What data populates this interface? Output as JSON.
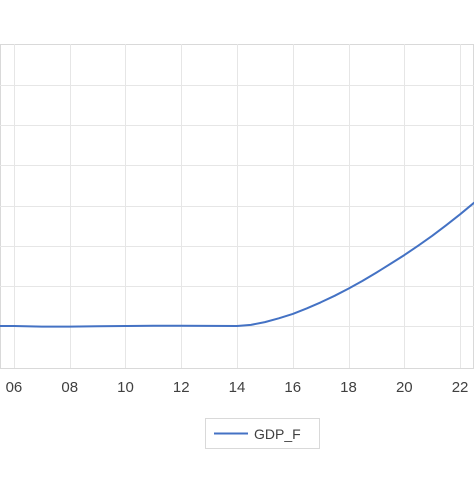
{
  "chart_data": {
    "type": "line",
    "title": "",
    "xlabel": "",
    "ylabel": "",
    "x_tick_labels": [
      "06",
      "08",
      "10",
      "12",
      "14",
      "16",
      "18",
      "20",
      "22"
    ],
    "x_ticks": [
      2006,
      2008,
      2010,
      2012,
      2014,
      2016,
      2018,
      2020,
      2022
    ],
    "xlim": [
      2005.5,
      2022.5
    ],
    "grid": true,
    "legend_position": "bottom-center",
    "series": [
      {
        "name": "GDP_F",
        "color": "#4472c4",
        "x": [
          2005.5,
          2006,
          2007,
          2008,
          2009,
          2010,
          2011,
          2012,
          2013,
          2014,
          2014.5,
          2015,
          2015.5,
          2016,
          2016.5,
          2017,
          2017.5,
          2018,
          2018.5,
          2019,
          2019.5,
          2020,
          2020.5,
          2021,
          2021.5,
          2022,
          2022.5
        ],
        "y": [
          0.0,
          0.0,
          -0.05,
          -0.05,
          -0.03,
          0.0,
          0.02,
          0.02,
          0.01,
          0.0,
          0.1,
          0.35,
          0.7,
          1.1,
          1.6,
          2.15,
          2.75,
          3.4,
          4.1,
          4.85,
          5.65,
          6.45,
          7.3,
          8.2,
          9.15,
          10.15,
          11.2
        ]
      }
    ]
  }
}
